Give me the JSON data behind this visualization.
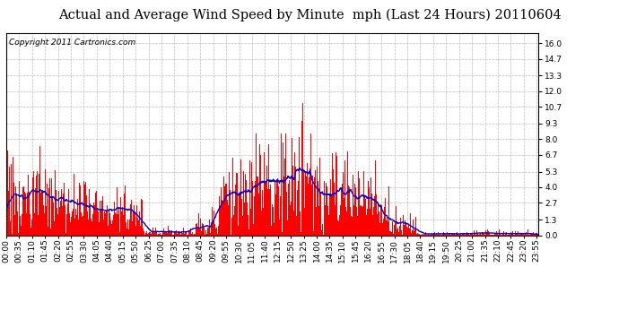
{
  "title": "Actual and Average Wind Speed by Minute  mph (Last 24 Hours) 20110604",
  "copyright": "Copyright 2011 Cartronics.com",
  "yticks": [
    0.0,
    1.3,
    2.7,
    4.0,
    5.3,
    6.7,
    8.0,
    9.3,
    10.7,
    12.0,
    13.3,
    14.7,
    16.0
  ],
  "ylim": [
    0,
    16.8
  ],
  "bar_color": "#ff0000",
  "line_color": "#0000cc",
  "background_color": "#ffffff",
  "grid_color": "#bbbbbb",
  "title_fontsize": 10.5,
  "copyright_fontsize": 6.5,
  "tick_fontsize": 6.5,
  "minutes_per_day": 1440,
  "label_step": 35
}
